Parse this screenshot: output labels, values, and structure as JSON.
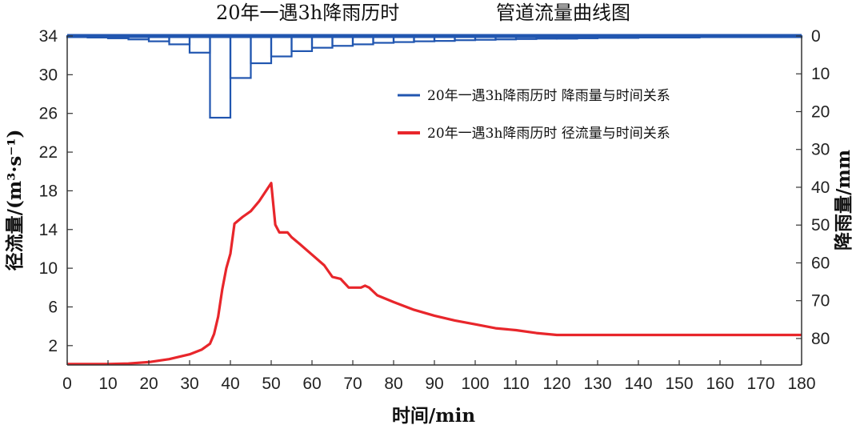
{
  "chart_data": {
    "type": "line",
    "title_left": "20年一遇3h降雨历时",
    "title_right": "管道流量曲线图",
    "xlabel": "时间/min",
    "ylabel_left": "径流量/(m³·s⁻¹)",
    "ylabel_right": "降雨量/mm",
    "xlim": [
      0,
      180
    ],
    "ylim_left": [
      0,
      34
    ],
    "ylim_right": [
      0,
      87
    ],
    "x_ticks": [
      0,
      10,
      20,
      30,
      40,
      50,
      60,
      70,
      80,
      90,
      100,
      110,
      120,
      130,
      140,
      150,
      160,
      170,
      180
    ],
    "y_left_ticks": [
      2,
      6,
      10,
      14,
      18,
      22,
      26,
      30,
      34
    ],
    "y_right_ticks": [
      0,
      10,
      20,
      30,
      40,
      50,
      60,
      70,
      80
    ],
    "colors": {
      "rainfall": "#2156b0",
      "runoff": "#e8262b",
      "axis": "#333333"
    },
    "series": [
      {
        "name": "rainfall",
        "kind": "inverted-step-bar",
        "axis": "right",
        "bins": [
          {
            "x0": 0,
            "x1": 5,
            "v": 0.3
          },
          {
            "x0": 5,
            "x1": 10,
            "v": 0.4
          },
          {
            "x0": 10,
            "x1": 15,
            "v": 0.6
          },
          {
            "x0": 15,
            "x1": 20,
            "v": 0.9
          },
          {
            "x0": 20,
            "x1": 25,
            "v": 1.4
          },
          {
            "x0": 25,
            "x1": 30,
            "v": 2.2
          },
          {
            "x0": 30,
            "x1": 35,
            "v": 4.4
          },
          {
            "x0": 35,
            "x1": 40,
            "v": 21.6
          },
          {
            "x0": 40,
            "x1": 45,
            "v": 11.1
          },
          {
            "x0": 45,
            "x1": 50,
            "v": 7.2
          },
          {
            "x0": 50,
            "x1": 55,
            "v": 5.4
          },
          {
            "x0": 55,
            "x1": 60,
            "v": 4.0
          },
          {
            "x0": 60,
            "x1": 65,
            "v": 3.1
          },
          {
            "x0": 65,
            "x1": 70,
            "v": 2.6
          },
          {
            "x0": 70,
            "x1": 75,
            "v": 2.2
          },
          {
            "x0": 75,
            "x1": 80,
            "v": 1.8
          },
          {
            "x0": 80,
            "x1": 85,
            "v": 1.6
          },
          {
            "x0": 85,
            "x1": 90,
            "v": 1.4
          },
          {
            "x0": 90,
            "x1": 95,
            "v": 1.3
          },
          {
            "x0": 95,
            "x1": 100,
            "v": 1.1
          },
          {
            "x0": 100,
            "x1": 105,
            "v": 1.0
          },
          {
            "x0": 105,
            "x1": 110,
            "v": 0.9
          },
          {
            "x0": 110,
            "x1": 115,
            "v": 0.8
          },
          {
            "x0": 115,
            "x1": 120,
            "v": 0.7
          },
          {
            "x0": 120,
            "x1": 125,
            "v": 0.7
          },
          {
            "x0": 125,
            "x1": 130,
            "v": 0.6
          },
          {
            "x0": 130,
            "x1": 135,
            "v": 0.5
          },
          {
            "x0": 135,
            "x1": 140,
            "v": 0.5
          },
          {
            "x0": 140,
            "x1": 145,
            "v": 0.4
          },
          {
            "x0": 145,
            "x1": 150,
            "v": 0.4
          },
          {
            "x0": 150,
            "x1": 155,
            "v": 0.4
          },
          {
            "x0": 155,
            "x1": 160,
            "v": 0.3
          },
          {
            "x0": 160,
            "x1": 165,
            "v": 0.3
          },
          {
            "x0": 165,
            "x1": 170,
            "v": 0.3
          },
          {
            "x0": 170,
            "x1": 175,
            "v": 0.3
          },
          {
            "x0": 175,
            "x1": 180,
            "v": 0.3
          }
        ]
      },
      {
        "name": "runoff",
        "kind": "line",
        "axis": "left",
        "points": [
          [
            0,
            0.1
          ],
          [
            10,
            0.1
          ],
          [
            15,
            0.15
          ],
          [
            20,
            0.3
          ],
          [
            25,
            0.6
          ],
          [
            30,
            1.1
          ],
          [
            33,
            1.6
          ],
          [
            35,
            2.2
          ],
          [
            36,
            3.2
          ],
          [
            37,
            5.0
          ],
          [
            38,
            7.8
          ],
          [
            39,
            10.0
          ],
          [
            40,
            11.5
          ],
          [
            41,
            14.6
          ],
          [
            43,
            15.3
          ],
          [
            45,
            15.9
          ],
          [
            47,
            16.9
          ],
          [
            50,
            18.8
          ],
          [
            51,
            14.5
          ],
          [
            52,
            13.7
          ],
          [
            54,
            13.7
          ],
          [
            55,
            13.2
          ],
          [
            57,
            12.5
          ],
          [
            60,
            11.4
          ],
          [
            63,
            10.3
          ],
          [
            65,
            9.1
          ],
          [
            66,
            9.0
          ],
          [
            67,
            8.9
          ],
          [
            69,
            8.0
          ],
          [
            72,
            8.0
          ],
          [
            73,
            8.2
          ],
          [
            74,
            8.0
          ],
          [
            76,
            7.2
          ],
          [
            80,
            6.5
          ],
          [
            85,
            5.7
          ],
          [
            90,
            5.1
          ],
          [
            95,
            4.6
          ],
          [
            100,
            4.2
          ],
          [
            105,
            3.8
          ],
          [
            110,
            3.6
          ],
          [
            115,
            3.3
          ],
          [
            120,
            3.1
          ],
          [
            130,
            3.1
          ],
          [
            140,
            3.1
          ],
          [
            150,
            3.1
          ],
          [
            160,
            3.1
          ],
          [
            170,
            3.1
          ],
          [
            180,
            3.1
          ]
        ]
      }
    ],
    "legend": [
      {
        "series": "rainfall",
        "label": "20年一遇3h降雨历时   降雨量与时间关系"
      },
      {
        "series": "runoff",
        "label": "20年一遇3h降雨历时   径流量与时间关系"
      }
    ]
  }
}
